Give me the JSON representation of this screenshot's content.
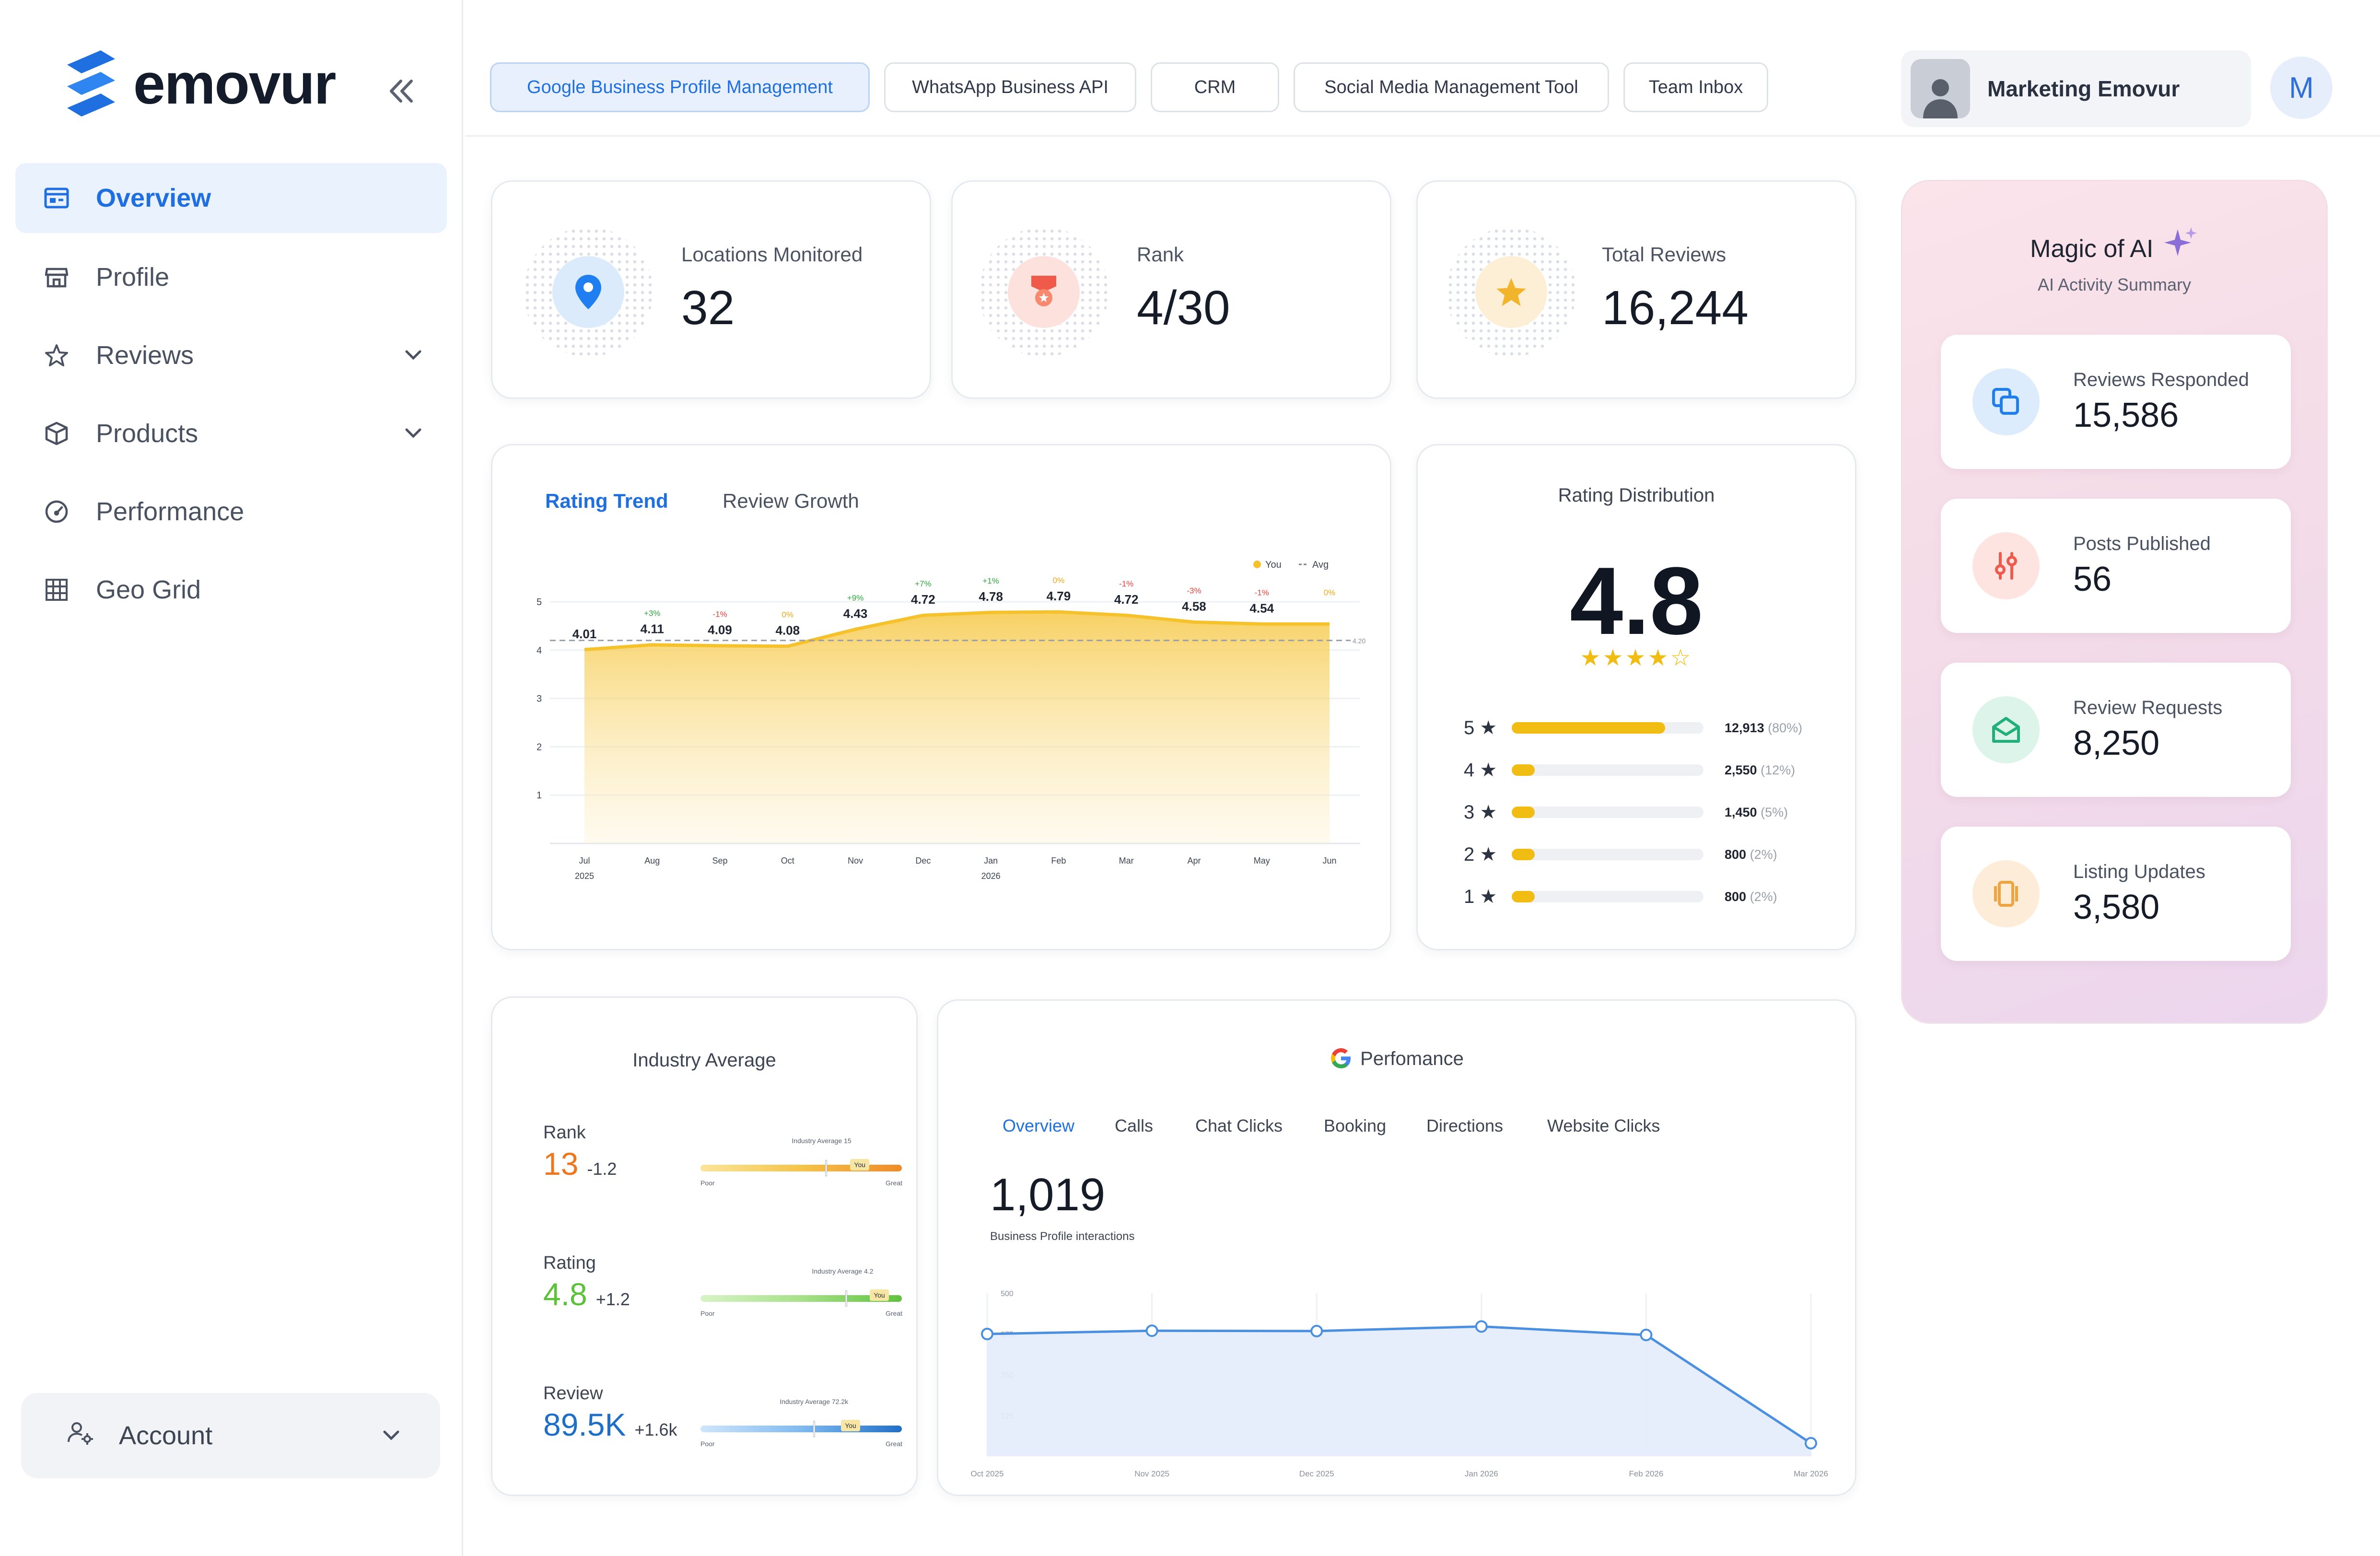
{
  "brand": {
    "name": "emovur",
    "accent": "#1f6fe0"
  },
  "sidebar": {
    "items": [
      {
        "label": "Overview",
        "icon": "dashboard-icon",
        "active": true
      },
      {
        "label": "Profile",
        "icon": "store-icon"
      },
      {
        "label": "Reviews",
        "icon": "star-icon",
        "expandable": true
      },
      {
        "label": "Products",
        "icon": "box-icon",
        "expandable": true
      },
      {
        "label": "Performance",
        "icon": "gauge-icon"
      },
      {
        "label": "Geo Grid",
        "icon": "grid-icon"
      }
    ],
    "account_label": "Account"
  },
  "topbar": {
    "tabs": [
      {
        "label": "Google Business Profile Management",
        "active": true
      },
      {
        "label": "WhatsApp Business API"
      },
      {
        "label": "CRM"
      },
      {
        "label": "Social Media Management Tool"
      },
      {
        "label": "Team Inbox"
      }
    ],
    "user_name": "Marketing Emovur",
    "avatar_initial": "M"
  },
  "stats": [
    {
      "label": "Locations Monitored",
      "value": "32",
      "icon": "location-pin-icon",
      "color": "#1f7ff0"
    },
    {
      "label": "Rank",
      "value": "4/30",
      "icon": "medal-icon",
      "color": "#f05a4a"
    },
    {
      "label": "Total Reviews",
      "value": "16,244",
      "icon": "star-icon",
      "color": "#f2b42a"
    }
  ],
  "rating_trend": {
    "tabs": [
      "Rating Trend",
      "Review Growth"
    ],
    "legend": [
      "You",
      "Avg"
    ]
  },
  "chart_data": [
    {
      "type": "area",
      "x": [
        "Jul 2025",
        "Aug",
        "Sep",
        "Oct",
        "Nov",
        "Dec",
        "Jan 2026",
        "Feb",
        "Mar",
        "Apr",
        "May",
        "Jun"
      ],
      "x_tick_lines": [
        [
          "Jul",
          "2025"
        ],
        [
          "Aug"
        ],
        [
          "Sep"
        ],
        [
          "Oct"
        ],
        [
          "Nov"
        ],
        [
          "Dec"
        ],
        [
          "Jan",
          "2026"
        ],
        [
          "Feb"
        ],
        [
          "Mar"
        ],
        [
          "Apr"
        ],
        [
          "May"
        ],
        [
          "Jun"
        ]
      ],
      "series": [
        {
          "name": "You",
          "values": [
            4.01,
            4.11,
            4.09,
            4.08,
            4.43,
            4.72,
            4.78,
            4.79,
            4.72,
            4.58,
            4.54,
            4.54
          ],
          "color": "#f5c22b"
        },
        {
          "name": "Avg",
          "values": [
            4.2,
            4.2,
            4.2,
            4.2,
            4.2,
            4.2,
            4.2,
            4.2,
            4.2,
            4.2,
            4.2,
            4.2
          ],
          "color": "#9aa0aa"
        }
      ],
      "point_labels": [
        "4.01",
        "4.11",
        "4.09",
        "4.08",
        "4.43",
        "4.72",
        "4.78",
        "4.79",
        "4.72",
        "4.58",
        "4.54",
        ""
      ],
      "change_labels": [
        "",
        "+3%",
        "-1%",
        "0%",
        "+9%",
        "+7%",
        "+1%",
        "0%",
        "-1%",
        "-3%",
        "-1%",
        "0%"
      ],
      "change_colors": [
        "",
        "#2eaa3c",
        "#e2463a",
        "#f2a81e",
        "#2eaa3c",
        "#2eaa3c",
        "#2eaa3c",
        "#f2a81e",
        "#e2463a",
        "#e2463a",
        "#e2463a",
        "#f2a81e"
      ],
      "avg_label": "4.20",
      "y_ticks": [
        "5",
        "4",
        "3",
        "2",
        "1"
      ],
      "ylim": [
        0,
        5
      ],
      "legend": "top-right",
      "grid": true
    },
    {
      "type": "bar",
      "categories": [
        "5",
        "4",
        "3",
        "2",
        "1"
      ],
      "values": [
        80,
        12,
        5,
        2,
        2
      ],
      "counts": [
        "12,913",
        "2,550",
        "1,450",
        "800",
        "800"
      ],
      "pct_labels": [
        "(80%)",
        "(12%)",
        "(5%)",
        "(2%)",
        "(2%)"
      ],
      "title": "Rating Distribution"
    },
    {
      "type": "line",
      "x": [
        "Oct 2025",
        "Nov 2025",
        "Dec 2025",
        "Jan 2026",
        "Feb 2026",
        "Mar 2026"
      ],
      "values": [
        375,
        385,
        384,
        398,
        372,
        40
      ],
      "y_ticks": [
        "500",
        "375",
        "250",
        "125"
      ],
      "ylim": [
        0,
        500
      ],
      "grid": true
    }
  ],
  "rating_distribution": {
    "title": "Rating Distribution",
    "average": "4.8",
    "stars": "★★★★☆",
    "star_glyph": "★"
  },
  "ai_panel": {
    "title": "Magic of AI",
    "subtitle": "AI Activity Summary",
    "items": [
      {
        "label": "Reviews Responded",
        "value": "15,586",
        "icon": "chat-copy-icon",
        "color": "#1f7ff0",
        "bg": "#dcecfc"
      },
      {
        "label": "Posts Published",
        "value": "56",
        "icon": "sliders-icon",
        "color": "#ef5a4c",
        "bg": "#fde4e1"
      },
      {
        "label": "Review Requests",
        "value": "8,250",
        "icon": "mail-open-icon",
        "color": "#22b07a",
        "bg": "#dcf4ea"
      },
      {
        "label": "Listing Updates",
        "value": "3,580",
        "icon": "stack-icon",
        "color": "#f0a440",
        "bg": "#fdecd8"
      }
    ]
  },
  "industry": {
    "title": "Industry Average",
    "rows": [
      {
        "label": "Rank",
        "value": "13",
        "delta": "-1.2",
        "color": "#f0761c",
        "avg_text": "Industry Average 15",
        "you_pos": 0.82,
        "avg_pos": 0.62,
        "gradient": [
          "#fbe59a",
          "#f5c44a",
          "#f08a28"
        ]
      },
      {
        "label": "Rating",
        "value": "4.8",
        "delta": "+1.2",
        "color": "#5bc238",
        "avg_text": "Industry Average 4.2",
        "you_pos": 0.9,
        "avg_pos": 0.72,
        "gradient": [
          "#d8f3c6",
          "#a7e18a",
          "#5fc23e"
        ]
      },
      {
        "label": "Review",
        "value": "89.5K",
        "delta": "+1.6k",
        "color": "#1f6fc9",
        "avg_text": "Industry Average 72.2k",
        "you_pos": 0.86,
        "avg_pos": 0.56,
        "gradient": [
          "#cfe6fb",
          "#7fbaf0",
          "#1f6fc9"
        ]
      }
    ],
    "poor_label": "Poor",
    "great_label": "Great",
    "you_label": "You"
  },
  "performance": {
    "title": "Perfomance",
    "tabs": [
      "Overview",
      "Calls",
      "Chat Clicks",
      "Booking",
      "Directions",
      "Website Clicks"
    ],
    "value": "1,019",
    "caption": "Business Profile interactions"
  }
}
